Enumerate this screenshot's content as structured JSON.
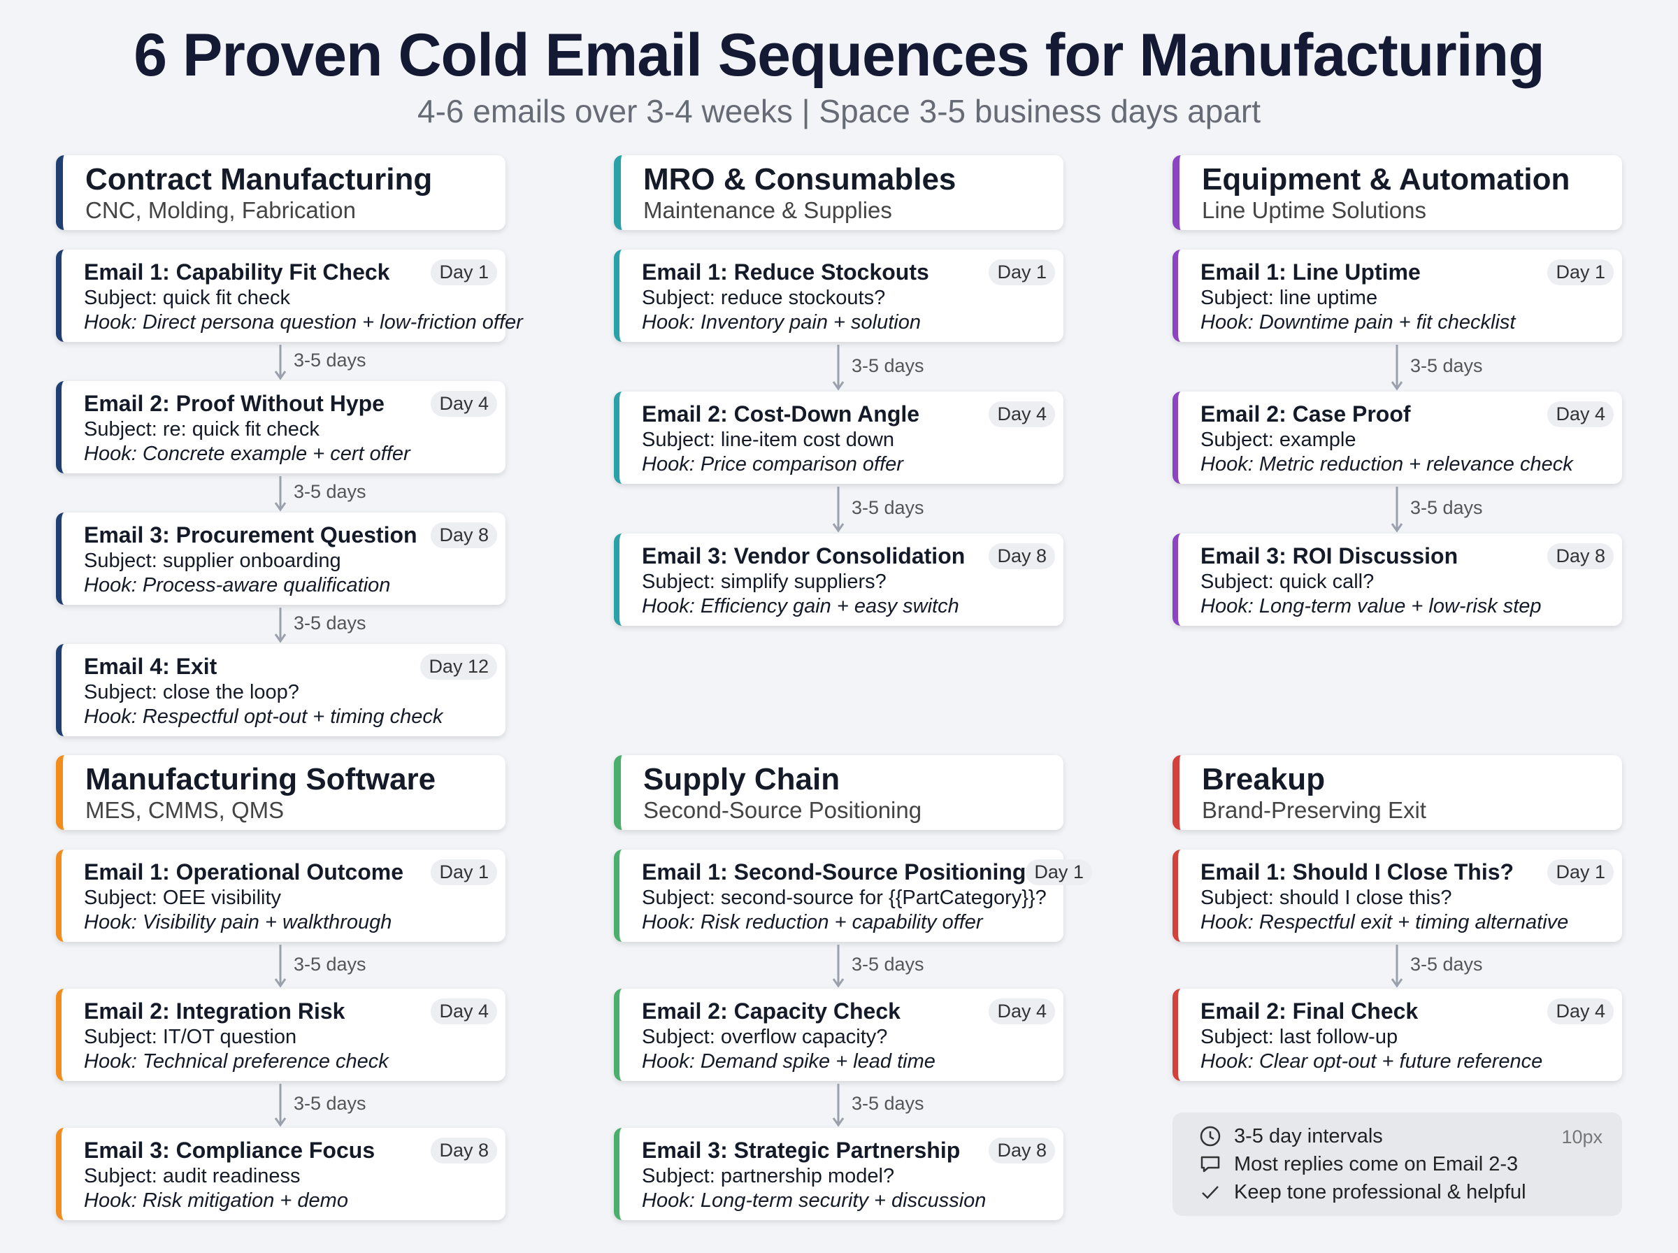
{
  "header": {
    "title": "6 Proven Cold Email Sequences for Manufacturing",
    "subtitle": "4-6 emails over 3-4 weeks | Space 3-5 business days apart"
  },
  "sections": [
    {
      "title": "Contract Manufacturing",
      "subtitle": "CNC, Molding, Fabrication",
      "color": "#1f3f73",
      "emails": [
        {
          "title": "Email 1: Capability Fit Check",
          "day": "Day 1",
          "subject": "Subject: quick fit check",
          "hook": "Hook: Direct persona question + low-friction offer"
        },
        {
          "gap_before": "3-5 days",
          "title": "Email 2: Proof Without Hype",
          "day": "Day 4",
          "subject": "Subject: re: quick fit check",
          "hook": "Hook: Concrete example + cert offer"
        },
        {
          "gap_before": "3-5 days",
          "title": "Email 3: Procurement Question",
          "day": "Day 8",
          "subject": "Subject: supplier onboarding",
          "hook": "Hook: Process-aware qualification"
        },
        {
          "gap_before": "3-5 days",
          "title": "Email 4: Exit",
          "day": "Day 12",
          "subject": "Subject: close the loop?",
          "hook": "Hook: Respectful opt-out + timing check"
        }
      ]
    },
    {
      "title": "MRO & Consumables",
      "subtitle": "Maintenance & Supplies",
      "color": "#2aa1a6",
      "emails": [
        {
          "title": "Email 1: Reduce Stockouts",
          "day": "Day 1",
          "subject": "Subject: reduce stockouts?",
          "hook": "Hook: Inventory pain + solution"
        },
        {
          "gap_before": "3-5 days",
          "title": "Email 2: Cost-Down Angle",
          "day": "Day 4",
          "subject": "Subject: line-item cost down",
          "hook": "Hook: Price comparison offer"
        },
        {
          "gap_before": "3-5 days",
          "title": "Email 3: Vendor Consolidation",
          "day": "Day 8",
          "subject": "Subject: simplify suppliers?",
          "hook": "Hook: Efficiency gain + easy switch"
        }
      ]
    },
    {
      "title": "Equipment & Automation",
      "subtitle": "Line Uptime Solutions",
      "color": "#8b45c2",
      "emails": [
        {
          "title": "Email 1: Line Uptime",
          "day": "Day 1",
          "subject": "Subject: line uptime",
          "hook": "Hook: Downtime pain + fit checklist"
        },
        {
          "gap_before": "3-5 days",
          "title": "Email 2: Case Proof",
          "day": "Day 4",
          "subject": "Subject: example",
          "hook": "Hook: Metric reduction + relevance check"
        },
        {
          "gap_before": "3-5 days",
          "title": "Email 3: ROI Discussion",
          "day": "Day 8",
          "subject": "Subject: quick call?",
          "hook": "Hook: Long-term value + low-risk step"
        }
      ]
    },
    {
      "title": "Manufacturing Software",
      "subtitle": "MES, CMMS, QMS",
      "color": "#f28c1c",
      "emails": [
        {
          "title": "Email 1: Operational Outcome",
          "day": "Day 1",
          "subject": "Subject: OEE visibility",
          "hook": "Hook: Visibility pain + walkthrough"
        },
        {
          "gap_before": "3-5 days",
          "title": "Email 2: Integration Risk",
          "day": "Day 4",
          "subject": "Subject: IT/OT question",
          "hook": "Hook: Technical preference check"
        },
        {
          "gap_before": "3-5 days",
          "title": "Email 3: Compliance Focus",
          "day": "Day 8",
          "subject": "Subject: audit readiness",
          "hook": "Hook: Risk mitigation + demo"
        }
      ]
    },
    {
      "title": "Supply Chain",
      "subtitle": "Second-Source Positioning",
      "color": "#4cae6c",
      "emails": [
        {
          "title": "Email 1: Second-Source Positioning",
          "day": "Day 1",
          "subject": "Subject: second-source for {{PartCategory}}?",
          "hook": "Hook: Risk reduction + capability offer"
        },
        {
          "gap_before": "3-5 days",
          "title": "Email 2: Capacity Check",
          "day": "Day 4",
          "subject": "Subject: overflow capacity?",
          "hook": "Hook: Demand spike + lead time"
        },
        {
          "gap_before": "3-5 days",
          "title": "Email 3: Strategic Partnership",
          "day": "Day 8",
          "subject": "Subject: partnership model?",
          "hook": "Hook: Long-term security + discussion"
        }
      ]
    },
    {
      "title": "Breakup",
      "subtitle": "Brand-Preserving Exit",
      "color": "#d4403c",
      "emails": [
        {
          "title": "Email 1: Should I Close This?",
          "day": "Day 1",
          "subject": "Subject: should I close this?",
          "hook": "Hook: Respectful exit + timing alternative"
        },
        {
          "gap_before": "3-5 days",
          "title": "Email 2: Final Check",
          "day": "Day 4",
          "subject": "Subject: last follow-up",
          "hook": "Hook: Clear opt-out + future reference"
        }
      ]
    }
  ],
  "notes": {
    "items": [
      "3-5 day intervals",
      "Most replies come on Email 2-3",
      "Keep tone professional & helpful"
    ],
    "tag": "10px"
  }
}
